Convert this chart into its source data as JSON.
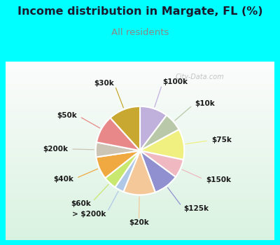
{
  "title": "Income distribution in Margate, FL (%)",
  "subtitle": "All residents",
  "title_color": "#1a1a2e",
  "subtitle_color": "#888888",
  "bg_cyan": "#00ffff",
  "bg_chart_colors": [
    "#e8f5f0",
    "#c8e8d8"
  ],
  "watermark": "City-Data.com",
  "labels": [
    "$100k",
    "$10k",
    "$75k",
    "$150k",
    "$125k",
    "$20k",
    "> $200k",
    "$60k",
    "$40k",
    "$200k",
    "$50k",
    "$30k"
  ],
  "values": [
    10.5,
    7.0,
    11.5,
    7.0,
    9.5,
    12.0,
    3.5,
    5.0,
    8.5,
    5.5,
    10.5,
    12.0
  ],
  "colors": [
    "#c0b0dc",
    "#b8c8a8",
    "#f0f080",
    "#f0b8c0",
    "#9090d0",
    "#f5c89a",
    "#b0c8e8",
    "#c8e870",
    "#f0a840",
    "#ccc4b4",
    "#e88888",
    "#c8a830"
  ],
  "label_font_size": 7.5,
  "title_fontsize": 11.5,
  "subtitle_fontsize": 9.5
}
